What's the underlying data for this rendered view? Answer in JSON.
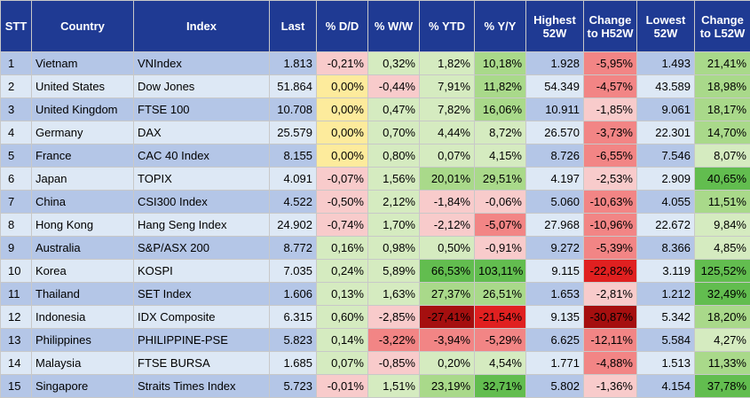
{
  "chart_data": {
    "type": "table",
    "columns": [
      "STT",
      "Country",
      "Index",
      "Last",
      "% D/D",
      "% W/W",
      "% YTD",
      "% Y/Y",
      "Highest 52W",
      "Change to H52W",
      "Lowest 52W",
      "Change to L52W"
    ],
    "rows": [
      {
        "stt": "1",
        "country": "Vietnam",
        "index": "VNIndex",
        "last": "1.813",
        "dd": "-0,21%",
        "ww": "0,32%",
        "ytd": "1,82%",
        "yy": "10,18%",
        "high": "1.928",
        "chh": "-5,95%",
        "low": "1.493",
        "chl": "21,41%"
      },
      {
        "stt": "2",
        "country": "United States",
        "index": "Dow Jones",
        "last": "51.864",
        "dd": "0,00%",
        "ww": "-0,44%",
        "ytd": "7,91%",
        "yy": "11,82%",
        "high": "54.349",
        "chh": "-4,57%",
        "low": "43.589",
        "chl": "18,98%"
      },
      {
        "stt": "3",
        "country": "United Kingdom",
        "index": "FTSE 100",
        "last": "10.708",
        "dd": "0,00%",
        "ww": "0,47%",
        "ytd": "7,82%",
        "yy": "16,06%",
        "high": "10.911",
        "chh": "-1,85%",
        "low": "9.061",
        "chl": "18,17%"
      },
      {
        "stt": "4",
        "country": "Germany",
        "index": "DAX",
        "last": "25.579",
        "dd": "0,00%",
        "ww": "0,70%",
        "ytd": "4,44%",
        "yy": "8,72%",
        "high": "26.570",
        "chh": "-3,73%",
        "low": "22.301",
        "chl": "14,70%"
      },
      {
        "stt": "5",
        "country": "France",
        "index": "CAC 40 Index",
        "last": "8.155",
        "dd": "0,00%",
        "ww": "0,80%",
        "ytd": "0,07%",
        "yy": "4,15%",
        "high": "8.726",
        "chh": "-6,55%",
        "low": "7.546",
        "chl": "8,07%"
      },
      {
        "stt": "6",
        "country": "Japan",
        "index": "TOPIX",
        "last": "4.091",
        "dd": "-0,07%",
        "ww": "1,56%",
        "ytd": "20,01%",
        "yy": "29,51%",
        "high": "4.197",
        "chh": "-2,53%",
        "low": "2.909",
        "chl": "40,65%"
      },
      {
        "stt": "7",
        "country": "China",
        "index": "CSI300 Index",
        "last": "4.522",
        "dd": "-0,50%",
        "ww": "2,12%",
        "ytd": "-1,84%",
        "yy": "-0,06%",
        "high": "5.060",
        "chh": "-10,63%",
        "low": "4.055",
        "chl": "11,51%"
      },
      {
        "stt": "8",
        "country": "Hong Kong",
        "index": "Hang Seng Index",
        "last": "24.902",
        "dd": "-0,74%",
        "ww": "1,70%",
        "ytd": "-2,12%",
        "yy": "-5,07%",
        "high": "27.968",
        "chh": "-10,96%",
        "low": "22.672",
        "chl": "9,84%"
      },
      {
        "stt": "9",
        "country": "Australia",
        "index": "S&P/ASX 200",
        "last": "8.772",
        "dd": "0,16%",
        "ww": "0,98%",
        "ytd": "0,50%",
        "yy": "-0,91%",
        "high": "9.272",
        "chh": "-5,39%",
        "low": "8.366",
        "chl": "4,85%"
      },
      {
        "stt": "10",
        "country": "Korea",
        "index": "KOSPI",
        "last": "7.035",
        "dd": "0,24%",
        "ww": "5,89%",
        "ytd": "66,53%",
        "yy": "103,11%",
        "high": "9.115",
        "chh": "-22,82%",
        "low": "3.119",
        "chl": "125,52%"
      },
      {
        "stt": "11",
        "country": "Thailand",
        "index": "SET Index",
        "last": "1.606",
        "dd": "0,13%",
        "ww": "1,63%",
        "ytd": "27,37%",
        "yy": "26,51%",
        "high": "1.653",
        "chh": "-2,81%",
        "low": "1.212",
        "chl": "32,49%"
      },
      {
        "stt": "12",
        "country": "Indonesia",
        "index": "IDX Composite",
        "last": "6.315",
        "dd": "0,60%",
        "ww": "-2,85%",
        "ytd": "-27,41%",
        "yy": "-21,54%",
        "high": "9.135",
        "chh": "-30,87%",
        "low": "5.342",
        "chl": "18,20%"
      },
      {
        "stt": "13",
        "country": "Philippines",
        "index": "PHILIPPINE-PSE",
        "last": "5.823",
        "dd": "0,14%",
        "ww": "-3,22%",
        "ytd": "-3,94%",
        "yy": "-5,29%",
        "high": "6.625",
        "chh": "-12,11%",
        "low": "5.584",
        "chl": "4,27%"
      },
      {
        "stt": "14",
        "country": "Malaysia",
        "index": "FTSE BURSA",
        "last": "1.685",
        "dd": "0,07%",
        "ww": "-0,85%",
        "ytd": "0,20%",
        "yy": "4,54%",
        "high": "1.771",
        "chh": "-4,88%",
        "low": "1.513",
        "chl": "11,33%"
      },
      {
        "stt": "15",
        "country": "Singapore",
        "index": "Straits Times Index",
        "last": "5.723",
        "dd": "-0,01%",
        "ww": "1,51%",
        "ytd": "23,19%",
        "yy": "32,71%",
        "high": "5.802",
        "chh": "-1,36%",
        "low": "4.154",
        "chl": "37,78%"
      }
    ],
    "heat_colors": {
      "header_bg": "#1f3a93",
      "row_odd": "#b4c6e7",
      "row_even": "#dde8f5",
      "neutral": "#fdeb9c",
      "pos_light": "#d5ebc0",
      "pos_mid": "#a9d98a",
      "pos_strong": "#62bd4f",
      "neg_light": "#f8cbcb",
      "neg_mid": "#f28585",
      "neg_strong": "#e02020",
      "neg_deep": "#a50f0f"
    }
  }
}
